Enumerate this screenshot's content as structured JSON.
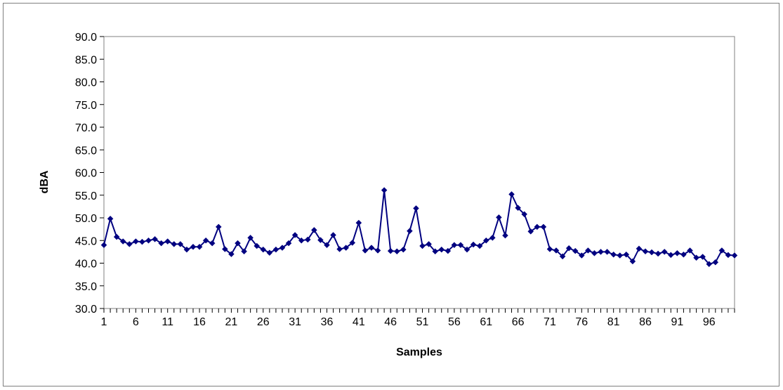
{
  "chart_data": {
    "type": "line",
    "title": "",
    "xlabel": "Samples",
    "ylabel": "dBA",
    "ylim": [
      30,
      90
    ],
    "y_ticks": [
      "30.0",
      "35.0",
      "40.0",
      "45.0",
      "50.0",
      "55.0",
      "60.0",
      "65.0",
      "70.0",
      "75.0",
      "80.0",
      "85.0",
      "90.0"
    ],
    "x_tick_labels": [
      "1",
      "6",
      "11",
      "16",
      "21",
      "26",
      "31",
      "36",
      "41",
      "46",
      "51",
      "56",
      "61",
      "66",
      "71",
      "76",
      "81",
      "86",
      "91",
      "96"
    ],
    "grid": false,
    "legend": "none",
    "marker": "diamond",
    "color": "#000080",
    "series": [
      {
        "x": [
          1,
          2,
          3,
          4,
          5,
          6,
          7,
          8,
          9,
          10,
          11,
          12,
          13,
          14,
          15,
          16,
          17,
          18,
          19,
          20,
          21,
          22,
          23,
          24,
          25,
          26,
          27,
          28,
          29,
          30,
          31,
          32,
          33,
          34,
          35,
          36,
          37,
          38,
          39,
          40,
          41,
          42,
          43,
          44,
          45,
          46,
          47,
          48,
          49,
          50,
          51,
          52,
          53,
          54,
          55,
          56,
          57,
          58,
          59,
          60,
          61,
          62,
          63,
          64,
          65,
          66,
          67,
          68,
          69,
          70,
          71,
          72,
          73,
          74,
          75,
          76,
          77,
          78,
          79,
          80,
          81,
          82,
          83,
          84,
          85,
          86,
          87,
          88,
          89,
          90,
          91,
          92,
          93,
          94,
          95,
          96,
          97,
          98,
          99,
          100
        ],
        "values": [
          44.0,
          49.8,
          45.8,
          44.8,
          44.2,
          44.8,
          44.7,
          45.0,
          45.3,
          44.4,
          44.8,
          44.2,
          44.2,
          43.0,
          43.6,
          43.6,
          45.0,
          44.4,
          48.0,
          43.1,
          42.0,
          44.4,
          42.6,
          45.6,
          43.8,
          43.0,
          42.3,
          43.0,
          43.4,
          44.4,
          46.2,
          45.0,
          45.2,
          47.3,
          45.1,
          44.0,
          46.2,
          43.1,
          43.4,
          44.5,
          48.9,
          42.8,
          43.4,
          42.8,
          56.1,
          42.7,
          42.6,
          43.0,
          47.1,
          52.1,
          43.8,
          44.2,
          42.6,
          43.0,
          42.7,
          44.0,
          44.0,
          43.0,
          44.1,
          43.8,
          45.0,
          45.6,
          50.1,
          46.1,
          55.2,
          52.2,
          50.8,
          47.0,
          48.0,
          48.0,
          43.1,
          42.8,
          41.5,
          43.3,
          42.7,
          41.7,
          42.8,
          42.2,
          42.5,
          42.5,
          41.9,
          41.7,
          41.9,
          40.4,
          43.2,
          42.6,
          42.4,
          42.1,
          42.5,
          41.8,
          42.2,
          41.9,
          42.8,
          41.2,
          41.4,
          39.8,
          40.2,
          42.8,
          41.8,
          41.7
        ]
      }
    ]
  }
}
